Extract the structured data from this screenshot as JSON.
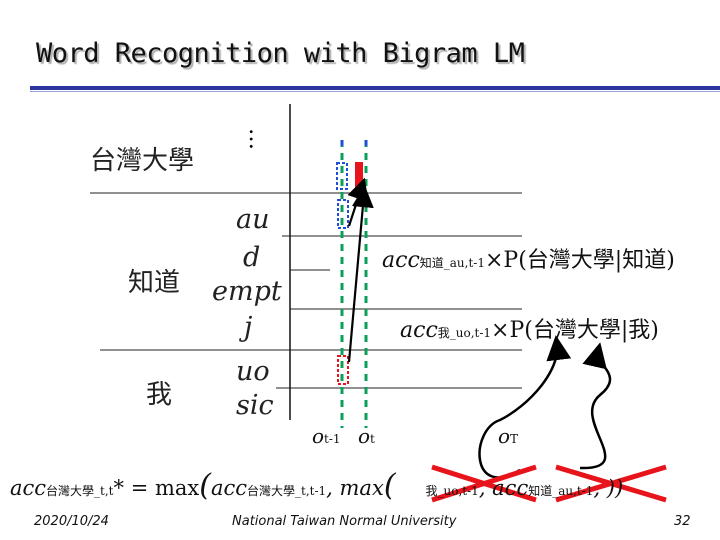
{
  "title": "Word Recognition with Bigram LM",
  "words": {
    "top": "台灣大學",
    "top_ellipsis": "…",
    "middle": "知道",
    "bottom": "我"
  },
  "phones": [
    "au",
    "d",
    "empt",
    "j",
    "uo",
    "sic"
  ],
  "time_labels": {
    "o_t_minus_1_base": "o",
    "o_t_minus_1_sub": "t-1",
    "o_t_base": "o",
    "o_t_sub": "t",
    "o_T_base": "o",
    "o_T_sub": "T"
  },
  "formula1": {
    "acc": "acc",
    "sub": "知道_au,t-1",
    "rest": "×P(台灣大學|知道)"
  },
  "formula2": {
    "acc": "acc",
    "sub": "我_uo,t-1",
    "rest": "×P(台灣大學|我)"
  },
  "bottom_formula": {
    "lhs": "acc",
    "lhs_sub": "台灣大學_t,t",
    "star_eq": "* = max",
    "inner1": "acc",
    "inner1_sub": "台灣大學_t,t-1",
    "comma_max": ", max",
    "inner2_sub": "我_uo,t-1",
    "inner3": ", acc",
    "inner3_sub": "知道_au,t-1",
    "tail": ",  ))"
  },
  "footer": {
    "date": "2020/10/24",
    "institution": "National Taiwan Normal University",
    "page": "32"
  },
  "colors": {
    "accent": "#2d35a0",
    "highlight_red": "#e8141b",
    "dashed_blue": "#1f4fd6",
    "dashed_green": "#0aa05a"
  }
}
